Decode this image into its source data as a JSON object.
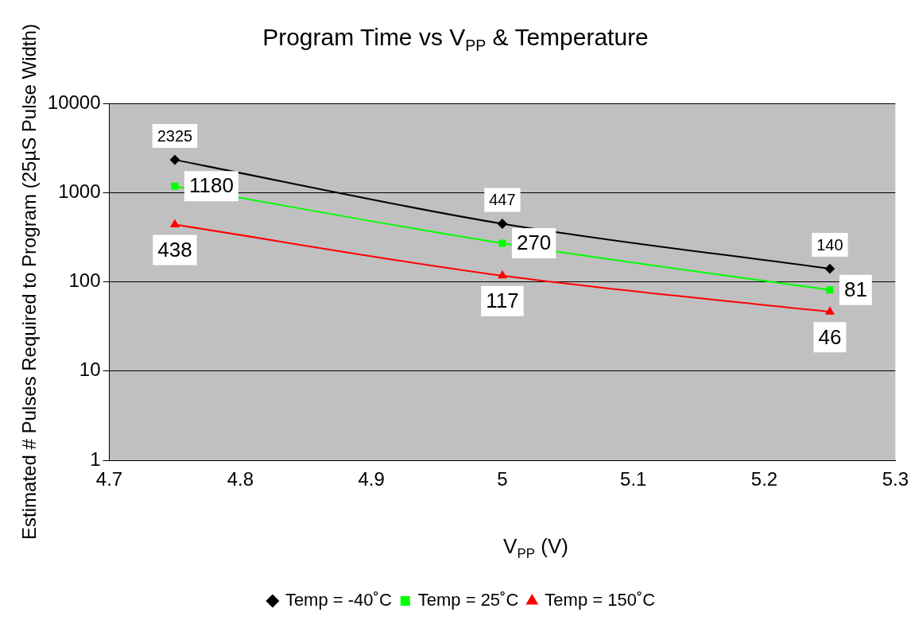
{
  "chart_data": {
    "type": "line",
    "title": "Program Time vs V$_{PP}$  & Temperature",
    "xlabel": "V$_{PP}$  (V)",
    "ylabel": "Estimated # Pulses Required to Program (25µS Pulse Width)",
    "x": [
      4.75,
      5,
      5.25
    ],
    "series": [
      {
        "name": "Temp = -40˚C",
        "color": "#000000",
        "marker": "diamond",
        "values": [
          2325,
          447,
          140
        ]
      },
      {
        "name": "Temp = 25˚C",
        "color": "#00ff00",
        "marker": "square",
        "values": [
          1180,
          270,
          81
        ]
      },
      {
        "name": "Temp = 150˚C",
        "color": "#ff0000",
        "marker": "triangle",
        "values": [
          438,
          117,
          46
        ]
      }
    ],
    "log": true,
    "xlim": [
      4.7,
      5.3
    ],
    "xticks": [
      4.7,
      4.8,
      4.9,
      5,
      5.1,
      5.2,
      5.3
    ],
    "ylim": [
      1,
      10000
    ],
    "yticks": [
      1,
      10,
      100,
      1000,
      10000
    ],
    "grid": "y",
    "legend": "bottom",
    "data_labels": true,
    "line_style": "solid"
  }
}
